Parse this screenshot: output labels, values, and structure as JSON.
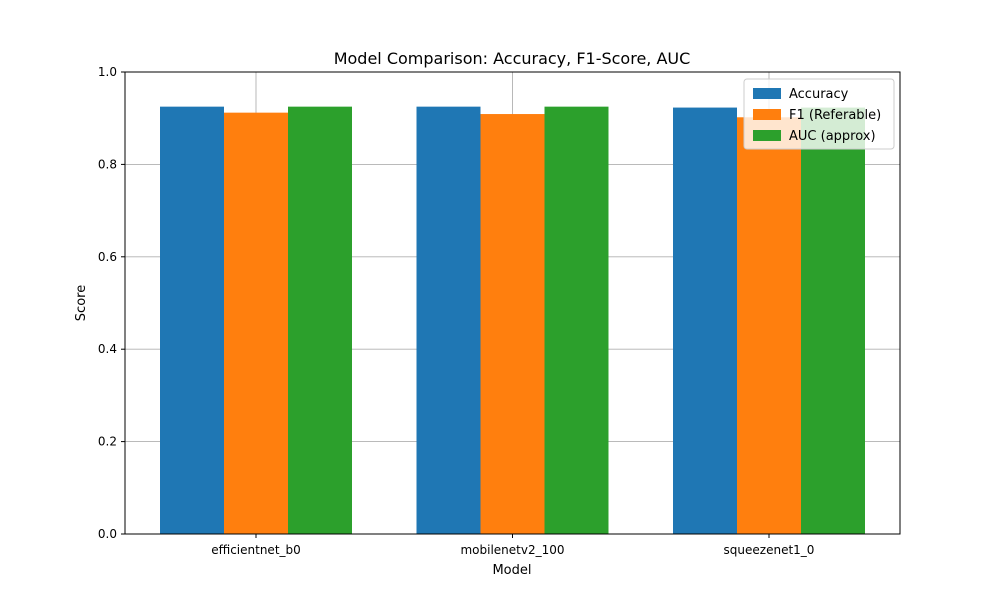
{
  "chart_data": {
    "type": "bar",
    "title": "Model Comparison: Accuracy, F1-Score, AUC",
    "xlabel": "Model",
    "ylabel": "Score",
    "categories": [
      "efficientnet_b0",
      "mobilenetv2_100",
      "squeezenet1_0"
    ],
    "series": [
      {
        "name": "Accuracy",
        "color": "#1f77b4",
        "values": [
          0.925,
          0.925,
          0.923
        ]
      },
      {
        "name": "F1 (Referable)",
        "color": "#ff7f0e",
        "values": [
          0.912,
          0.909,
          0.902
        ]
      },
      {
        "name": "AUC (approx)",
        "color": "#2ca02c",
        "values": [
          0.925,
          0.925,
          0.923
        ]
      }
    ],
    "ylim": [
      0,
      1.0
    ],
    "yticks": [
      0.0,
      0.2,
      0.4,
      0.6,
      0.8,
      1.0
    ],
    "ytick_labels": [
      "0.0",
      "0.2",
      "0.4",
      "0.6",
      "0.8",
      "1.0"
    ],
    "grid": true,
    "legend_position": "top-right"
  }
}
